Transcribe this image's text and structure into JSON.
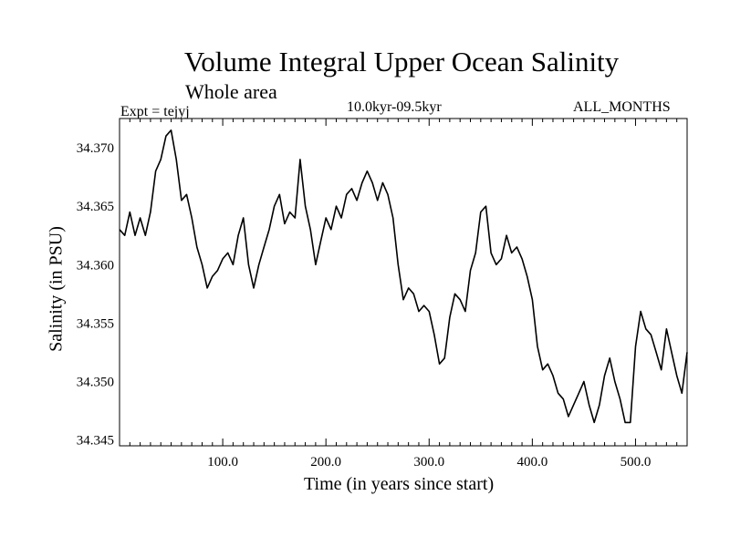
{
  "chart_data": {
    "type": "line",
    "title": "Volume Integral Upper Ocean Salinity",
    "subtitle": "Whole area",
    "experiment_label": "Expt = tejyj",
    "time_range_label": "10.0kyr-09.5kyr",
    "months_label": "ALL_MONTHS",
    "xlabel": "Time (in years since start)",
    "ylabel": "Salinity (in PSU)",
    "xlim": [
      0,
      550
    ],
    "ylim": [
      34.3445,
      34.3725
    ],
    "xticks": [
      100,
      200,
      300,
      400,
      500
    ],
    "xtick_labels": [
      "100.0",
      "200.0",
      "300.0",
      "400.0",
      "500.0"
    ],
    "yticks": [
      34.345,
      34.35,
      34.355,
      34.36,
      34.365,
      34.37
    ],
    "ytick_labels": [
      "34.345",
      "34.350",
      "34.355",
      "34.360",
      "34.365",
      "34.370"
    ],
    "grid": false,
    "series": [
      {
        "name": "Salinity",
        "color": "#000000",
        "x": [
          0,
          5,
          10,
          15,
          20,
          25,
          30,
          35,
          40,
          45,
          50,
          55,
          60,
          65,
          70,
          75,
          80,
          85,
          90,
          95,
          100,
          105,
          110,
          115,
          120,
          125,
          130,
          135,
          140,
          145,
          150,
          155,
          160,
          165,
          170,
          175,
          180,
          185,
          190,
          195,
          200,
          205,
          210,
          215,
          220,
          225,
          230,
          235,
          240,
          245,
          250,
          255,
          260,
          265,
          270,
          275,
          280,
          285,
          290,
          295,
          300,
          305,
          310,
          315,
          320,
          325,
          330,
          335,
          340,
          345,
          350,
          355,
          360,
          365,
          370,
          375,
          380,
          385,
          390,
          395,
          400,
          405,
          410,
          415,
          420,
          425,
          430,
          435,
          440,
          445,
          450,
          455,
          460,
          465,
          470,
          475,
          480,
          485,
          490,
          495,
          500,
          505,
          510,
          515,
          520,
          525,
          530,
          535,
          540,
          545,
          550
        ],
        "values": [
          34.363,
          34.3625,
          34.3645,
          34.3625,
          34.364,
          34.3625,
          34.3645,
          34.368,
          34.369,
          34.371,
          34.3715,
          34.369,
          34.3655,
          34.366,
          34.364,
          34.3615,
          34.36,
          34.358,
          34.359,
          34.3595,
          34.3605,
          34.361,
          34.36,
          34.3625,
          34.364,
          34.36,
          34.358,
          34.36,
          34.3615,
          34.363,
          34.365,
          34.366,
          34.3635,
          34.3645,
          34.364,
          34.369,
          34.365,
          34.363,
          34.36,
          34.362,
          34.364,
          34.363,
          34.365,
          34.364,
          34.366,
          34.3665,
          34.3655,
          34.367,
          34.368,
          34.367,
          34.3655,
          34.367,
          34.366,
          34.364,
          34.36,
          34.357,
          34.358,
          34.3575,
          34.356,
          34.3565,
          34.356,
          34.354,
          34.3515,
          34.352,
          34.3555,
          34.3575,
          34.357,
          34.356,
          34.3595,
          34.361,
          34.3645,
          34.365,
          34.361,
          34.36,
          34.3605,
          34.3625,
          34.361,
          34.3615,
          34.3605,
          34.359,
          34.357,
          34.353,
          34.351,
          34.3515,
          34.3505,
          34.349,
          34.3485,
          34.347,
          34.348,
          34.349,
          34.35,
          34.348,
          34.3465,
          34.348,
          34.3505,
          34.352,
          34.35,
          34.3485,
          34.3465,
          34.3465,
          34.353,
          34.356,
          34.3545,
          34.354,
          34.3525,
          34.351,
          34.3545,
          34.3525,
          34.3505,
          34.349,
          34.3525
        ]
      }
    ]
  }
}
